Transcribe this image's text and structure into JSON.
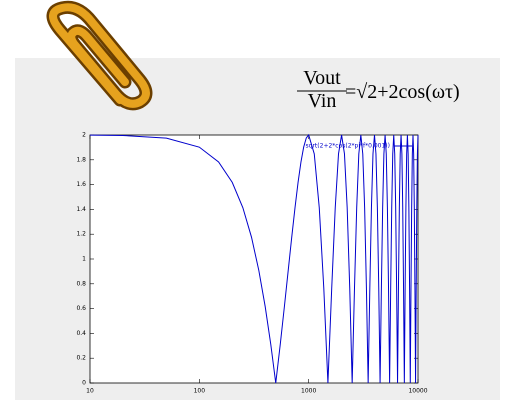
{
  "chart_data": {
    "type": "line",
    "formula": {
      "numerator": "Vout",
      "denominator": "Vin",
      "rhs": "=√2+2cos(ωτ)"
    },
    "x": [
      10,
      20,
      50,
      100,
      150,
      200,
      250,
      300,
      350,
      400,
      450,
      500,
      550,
      600,
      650,
      700,
      750,
      800,
      850,
      900,
      950,
      1000,
      1125,
      1250,
      1375,
      1500,
      1625,
      1750,
      1875,
      2000,
      2125,
      2250,
      2375,
      2500,
      2625,
      2750,
      2875,
      3000,
      3125,
      3250,
      3375,
      3500,
      3625,
      3750,
      3875,
      4000,
      4125,
      4250,
      4375,
      4500,
      4625,
      4750,
      4875,
      5000,
      5125,
      5250,
      5375,
      5500,
      5625,
      5750,
      5875,
      6000,
      6125,
      6250,
      6375,
      6500,
      6625,
      6750,
      6875,
      7000,
      7125,
      7250,
      7375,
      7500,
      7625,
      7750,
      7875,
      8000,
      8125,
      8250,
      8375,
      8500,
      8625,
      8750,
      8875,
      9000,
      9125,
      9250,
      9375,
      9500,
      9625,
      9750,
      9875,
      10000
    ],
    "series": [
      {
        "name": "sqrt(2+2*cos(2*pi*f*0.001))",
        "color": "#0000cc",
        "values": [
          1.999,
          1.996,
          1.975,
          1.902,
          1.782,
          1.618,
          1.414,
          1.176,
          0.908,
          0.618,
          0.313,
          0,
          0.313,
          0.618,
          0.908,
          1.176,
          1.414,
          1.618,
          1.782,
          1.902,
          1.975,
          2,
          1.848,
          1.414,
          0.765,
          0,
          0.765,
          1.414,
          1.848,
          2,
          1.848,
          1.414,
          0.765,
          0,
          0.765,
          1.414,
          1.848,
          2,
          1.848,
          1.414,
          0.765,
          0,
          0.765,
          1.414,
          1.848,
          2,
          1.848,
          1.414,
          0.765,
          0,
          0.765,
          1.414,
          1.848,
          2,
          1.848,
          1.414,
          0.765,
          0,
          0.765,
          1.414,
          1.848,
          2,
          1.848,
          1.414,
          0.765,
          0,
          0.765,
          1.414,
          1.848,
          2,
          1.848,
          1.414,
          0.765,
          0,
          0.765,
          1.414,
          1.848,
          2,
          1.848,
          1.414,
          0.765,
          0,
          0.765,
          1.414,
          1.848,
          2,
          1.848,
          1.414,
          0.765,
          0,
          0.765,
          1.414,
          1.848,
          2
        ]
      }
    ],
    "xlim": [
      10,
      10000
    ],
    "xticks": [
      10,
      100,
      1000,
      10000
    ],
    "xscale": "log",
    "ylim": [
      0,
      2
    ],
    "yticks": [
      0,
      0.2,
      0.4,
      0.6,
      0.8,
      1,
      1.2,
      1.4,
      1.6,
      1.8,
      2
    ],
    "legend": "upper right"
  }
}
